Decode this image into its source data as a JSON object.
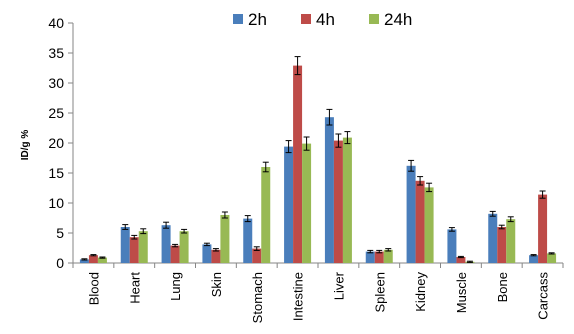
{
  "chart_data": {
    "type": "bar",
    "title": "",
    "xlabel": "",
    "ylabel": "ID/g %",
    "ylim": [
      0,
      40
    ],
    "yticks": [
      0,
      5,
      10,
      15,
      20,
      25,
      30,
      35,
      40
    ],
    "grid": false,
    "legend_position": "top-right",
    "error_bars": true,
    "categories": [
      "Blood",
      "Heart",
      "Lung",
      "Skin",
      "Stomach",
      "Intestine",
      "Liver",
      "Spleen",
      "Kidney",
      "Muscle",
      "Bone",
      "Carcass"
    ],
    "series": [
      {
        "name": "2h",
        "color": "#4a7ebb",
        "values": [
          0.6,
          6.0,
          6.3,
          3.1,
          7.4,
          19.4,
          24.3,
          1.9,
          16.2,
          5.6,
          8.2,
          1.3
        ],
        "errors": [
          0.1,
          0.4,
          0.5,
          0.2,
          0.5,
          1.0,
          1.3,
          0.2,
          0.9,
          0.3,
          0.4,
          0.1
        ]
      },
      {
        "name": "4h",
        "color": "#be4b48",
        "values": [
          1.3,
          4.3,
          2.9,
          2.2,
          2.4,
          32.9,
          20.4,
          1.9,
          13.7,
          1.0,
          6.0,
          11.4
        ],
        "errors": [
          0.1,
          0.3,
          0.2,
          0.2,
          0.3,
          1.5,
          1.1,
          0.2,
          0.7,
          0.1,
          0.3,
          0.6
        ]
      },
      {
        "name": "24h",
        "color": "#98b954",
        "values": [
          0.9,
          5.3,
          5.3,
          8.0,
          16.0,
          19.9,
          20.9,
          2.2,
          12.6,
          0.2,
          7.3,
          1.6
        ],
        "errors": [
          0.1,
          0.4,
          0.3,
          0.5,
          0.8,
          1.1,
          1.0,
          0.2,
          0.7,
          0.1,
          0.4,
          0.1
        ]
      }
    ]
  }
}
